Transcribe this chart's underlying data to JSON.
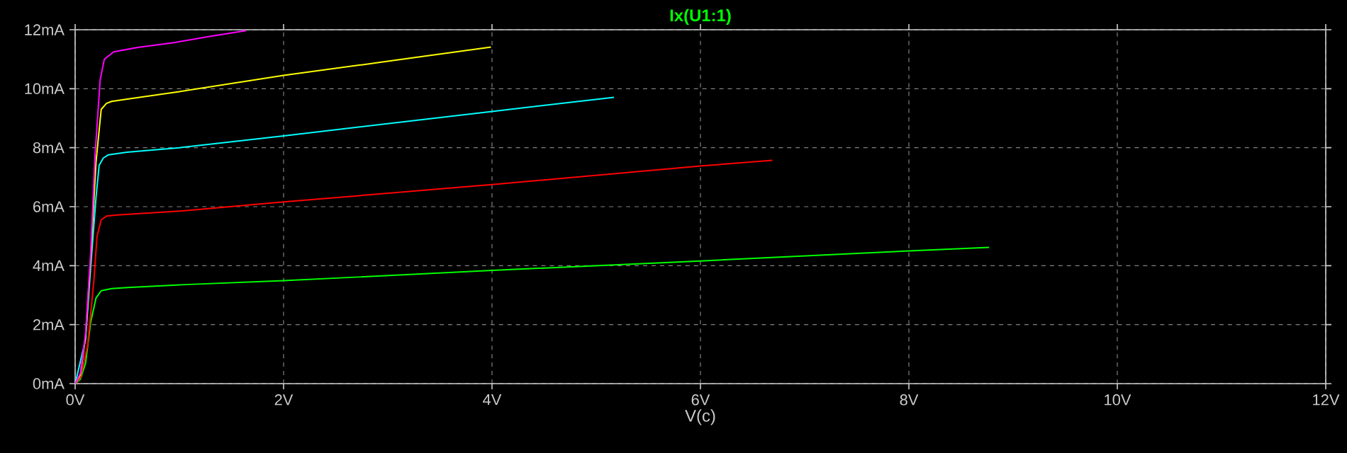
{
  "chart_data": {
    "type": "line",
    "title": "Ix(U1:1)",
    "xlabel": "V(c)",
    "xlim": [
      0,
      12
    ],
    "ylim": [
      0,
      12
    ],
    "xticks": [
      {
        "value": 0,
        "label": "0V"
      },
      {
        "value": 2,
        "label": "2V"
      },
      {
        "value": 4,
        "label": "4V"
      },
      {
        "value": 6,
        "label": "6V"
      },
      {
        "value": 8,
        "label": "8V"
      },
      {
        "value": 10,
        "label": "10V"
      },
      {
        "value": 12,
        "label": "12V"
      }
    ],
    "yticks": [
      {
        "value": 0,
        "label": "0mA"
      },
      {
        "value": 2,
        "label": "2mA"
      },
      {
        "value": 4,
        "label": "4mA"
      },
      {
        "value": 6,
        "label": "6mA"
      },
      {
        "value": 8,
        "label": "8mA"
      },
      {
        "value": 10,
        "label": "10mA"
      },
      {
        "value": 12,
        "label": "12mA"
      }
    ],
    "grid": true,
    "series": [
      {
        "color": "#00ff00",
        "x": [
          0,
          0.05,
          0.1,
          0.15,
          0.2,
          0.25,
          0.35,
          0.5,
          1,
          2,
          4,
          6,
          8,
          8.77
        ],
        "values": [
          0,
          0.15,
          0.7,
          2.1,
          2.9,
          3.15,
          3.22,
          3.26,
          3.35,
          3.49,
          3.84,
          4.16,
          4.5,
          4.62
        ]
      },
      {
        "color": "#ff0000",
        "x": [
          0,
          0.05,
          0.12,
          0.18,
          0.21,
          0.25,
          0.3,
          0.4,
          1,
          2,
          4,
          6,
          6.69
        ],
        "values": [
          0,
          0.2,
          1.3,
          3.5,
          5.0,
          5.55,
          5.68,
          5.72,
          5.85,
          6.16,
          6.75,
          7.38,
          7.57
        ]
      },
      {
        "color": "#00ffff",
        "x": [
          0,
          0.05,
          0.1,
          0.15,
          0.2,
          0.23,
          0.27,
          0.32,
          0.5,
          1,
          2,
          4,
          5.17
        ],
        "values": [
          0,
          null,
          1.5,
          4.0,
          6.3,
          7.4,
          7.65,
          7.76,
          7.85,
          8.0,
          8.4,
          9.23,
          9.71
        ]
      },
      {
        "color": "#ffff00",
        "x": [
          0,
          0.05,
          0.1,
          0.15,
          0.2,
          0.25,
          0.3,
          0.35,
          0.5,
          1,
          2,
          3,
          3.99
        ],
        "values": [
          0,
          0.3,
          1.6,
          4.3,
          7.5,
          9.3,
          9.5,
          9.57,
          9.65,
          9.9,
          10.45,
          10.93,
          11.41
        ]
      },
      {
        "color": "#ff00ff",
        "x": [
          0,
          0.05,
          0.1,
          0.15,
          0.19,
          0.24,
          0.28,
          0.37,
          0.6,
          0.96,
          1.3,
          1.64
        ],
        "values": [
          0,
          0.35,
          1.7,
          4.5,
          7.7,
          10.3,
          11.0,
          11.25,
          11.4,
          11.57,
          11.78,
          11.97
        ]
      }
    ]
  }
}
